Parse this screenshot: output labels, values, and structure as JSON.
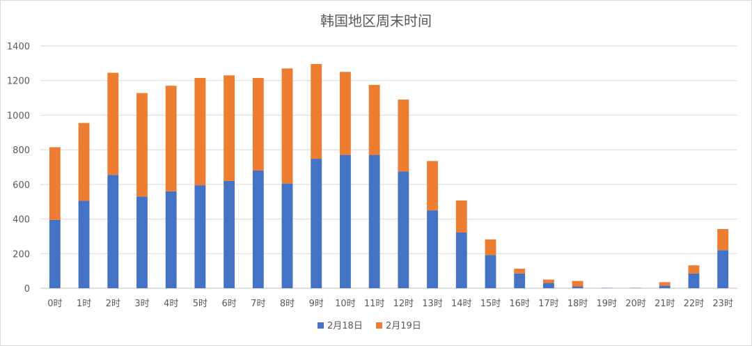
{
  "chart_data": {
    "type": "bar",
    "stacked": true,
    "title": "韩国地区周末时间",
    "categories": [
      "0时",
      "1时",
      "2时",
      "3时",
      "4时",
      "5时",
      "6时",
      "7时",
      "8时",
      "9时",
      "10时",
      "11时",
      "12时",
      "13时",
      "14时",
      "15时",
      "16时",
      "17时",
      "18时",
      "19时",
      "20时",
      "21时",
      "22时",
      "23时"
    ],
    "series": [
      {
        "name": "2月18日",
        "color": "#4472c4",
        "values": [
          395,
          505,
          655,
          530,
          560,
          595,
          620,
          680,
          605,
          748,
          770,
          770,
          675,
          450,
          322,
          192,
          85,
          30,
          10,
          2,
          2,
          15,
          85,
          220
        ]
      },
      {
        "name": "2月19日",
        "color": "#ed7d31",
        "values": [
          420,
          450,
          590,
          598,
          610,
          620,
          610,
          535,
          665,
          548,
          480,
          405,
          415,
          285,
          185,
          90,
          28,
          20,
          32,
          0,
          0,
          20,
          47,
          122
        ]
      }
    ],
    "ylim": [
      0,
      1400
    ],
    "yticks": [
      0,
      200,
      400,
      600,
      800,
      1000,
      1200,
      1400
    ],
    "grid": true,
    "legend": "bottom",
    "xlabel": "",
    "ylabel": ""
  }
}
